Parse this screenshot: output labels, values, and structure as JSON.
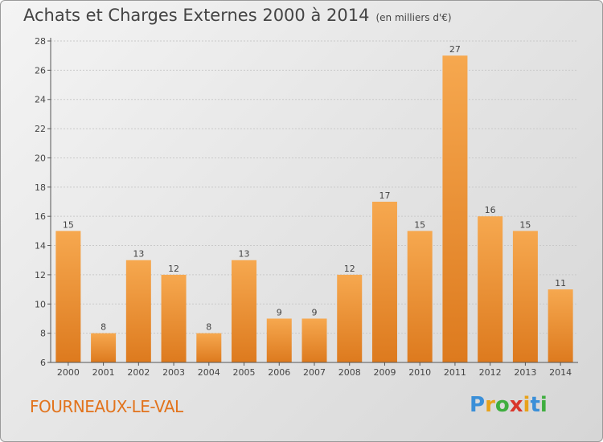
{
  "header": {
    "title": "Achats et Charges Externes 2000 à 2014",
    "subtitle": "(en milliers d'€)"
  },
  "footer": {
    "place": "FOURNEAUX-LE-VAL",
    "logo_letters": [
      "P",
      "r",
      "o",
      "x",
      "i",
      "t",
      "i"
    ],
    "logo_colors": [
      "#3a8fd8",
      "#e8a21a",
      "#3fae3f",
      "#d9362b",
      "#e8a21a",
      "#3a8fd8",
      "#3fae3f"
    ]
  },
  "colors": {
    "bar_top": "#f6a84f",
    "bar_bottom": "#dd7a1e",
    "place_text": "#e2731c"
  },
  "chart_data": {
    "type": "bar",
    "categories": [
      "2000",
      "2001",
      "2002",
      "2003",
      "2004",
      "2005",
      "2006",
      "2007",
      "2008",
      "2009",
      "2010",
      "2011",
      "2012",
      "2013",
      "2014"
    ],
    "values": [
      15,
      8,
      13,
      12,
      8,
      13,
      9,
      9,
      12,
      17,
      15,
      27,
      16,
      15,
      11
    ],
    "data_labels": [
      "15",
      "8",
      "13",
      "12",
      "8",
      "13",
      "9",
      "9",
      "12",
      "17",
      "15",
      "27",
      "16",
      "15",
      "11"
    ],
    "yticks": [
      "6",
      "8",
      "10",
      "12",
      "14",
      "16",
      "18",
      "20",
      "22",
      "24",
      "26",
      "28"
    ],
    "ylim": [
      6,
      28
    ],
    "grid": true,
    "xlabel": "",
    "ylabel": ""
  }
}
